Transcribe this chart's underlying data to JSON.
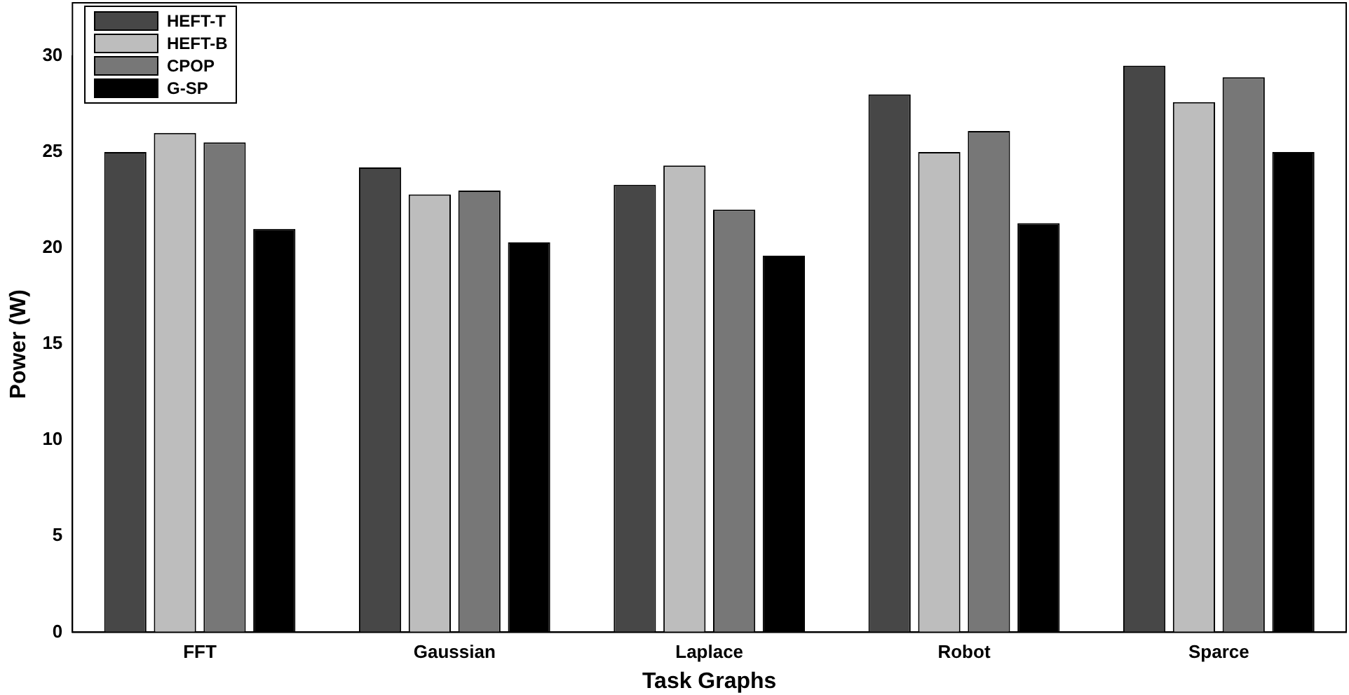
{
  "chart_data": {
    "type": "bar",
    "xlabel": "Task Graphs",
    "ylabel": "Power (W)",
    "categories": [
      "FFT",
      "Gaussian",
      "Laplace",
      "Robot",
      "Sparce"
    ],
    "series": [
      {
        "name": "HEFT-T",
        "color": "#474747",
        "values": [
          25,
          24.2,
          23.3,
          28,
          29.5
        ]
      },
      {
        "name": "HEFT-B",
        "color": "#bdbdbd",
        "values": [
          26,
          22.8,
          24.3,
          25,
          27.6
        ]
      },
      {
        "name": "CPOP",
        "color": "#777777",
        "values": [
          25.5,
          23,
          22,
          26.1,
          28.9
        ]
      },
      {
        "name": "G-SP",
        "color": "#000000",
        "values": [
          21,
          20.3,
          19.6,
          21.3,
          25
        ]
      }
    ],
    "ylim": [
      0,
      30
    ],
    "yticks": [
      0,
      5,
      10,
      15,
      20,
      25,
      30
    ],
    "grid": false,
    "legend": "top left"
  }
}
